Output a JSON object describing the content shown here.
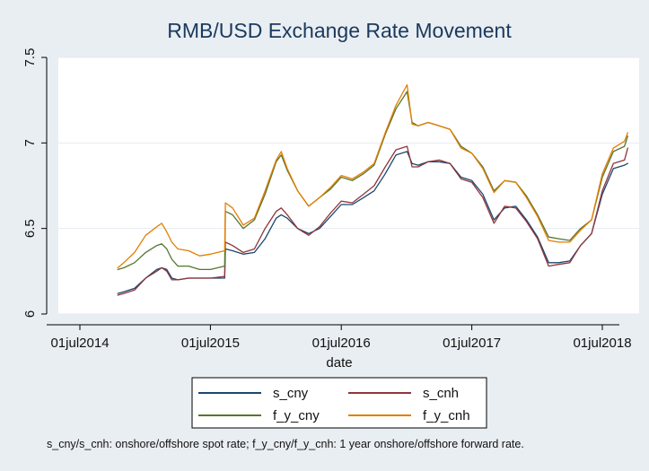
{
  "chart_data": {
    "type": "line",
    "title": "RMB/USD Exchange Rate Movement",
    "xlabel": "date",
    "ylabel": "",
    "ylim": [
      6,
      7.5
    ],
    "yticks": [
      6,
      6.5,
      7,
      7.5
    ],
    "ytick_labels": [
      "6",
      "6.5",
      "7",
      "7.5"
    ],
    "xticks": [
      "2014-07-01",
      "2015-07-01",
      "2016-07-01",
      "2017-07-01",
      "2018-07-01"
    ],
    "xtick_labels": [
      "01jul2014",
      "01jul2015",
      "01jul2016",
      "01jul2017",
      "01jul2018"
    ],
    "xlim": [
      "2014-07-01",
      "2018-09-15"
    ],
    "grid": true,
    "legend_position": "bottom",
    "note": "s_cny/s_cnh: onshore/offshore spot rate; f_y_cny/f_y_cnh: 1 year onshore/offshore forward rate.",
    "series": [
      {
        "name": "s_cny",
        "color": "#1a476f",
        "points": [
          [
            "2014-10-15",
            6.12
          ],
          [
            "2014-11-01",
            6.13
          ],
          [
            "2014-12-01",
            6.15
          ],
          [
            "2015-01-01",
            6.21
          ],
          [
            "2015-02-01",
            6.26
          ],
          [
            "2015-02-15",
            6.27
          ],
          [
            "2015-03-01",
            6.26
          ],
          [
            "2015-03-15",
            6.21
          ],
          [
            "2015-04-01",
            6.2
          ],
          [
            "2015-05-01",
            6.21
          ],
          [
            "2015-06-01",
            6.21
          ],
          [
            "2015-07-01",
            6.21
          ],
          [
            "2015-08-10",
            6.21
          ],
          [
            "2015-08-12",
            6.38
          ],
          [
            "2015-09-01",
            6.37
          ],
          [
            "2015-10-01",
            6.35
          ],
          [
            "2015-11-01",
            6.36
          ],
          [
            "2015-12-01",
            6.44
          ],
          [
            "2016-01-01",
            6.56
          ],
          [
            "2016-01-15",
            6.58
          ],
          [
            "2016-02-01",
            6.56
          ],
          [
            "2016-03-01",
            6.5
          ],
          [
            "2016-04-01",
            6.47
          ],
          [
            "2016-05-01",
            6.5
          ],
          [
            "2016-06-01",
            6.57
          ],
          [
            "2016-07-01",
            6.64
          ],
          [
            "2016-08-01",
            6.64
          ],
          [
            "2016-09-01",
            6.68
          ],
          [
            "2016-10-01",
            6.72
          ],
          [
            "2016-11-01",
            6.82
          ],
          [
            "2016-12-01",
            6.93
          ],
          [
            "2017-01-01",
            6.95
          ],
          [
            "2017-01-15",
            6.88
          ],
          [
            "2017-02-01",
            6.87
          ],
          [
            "2017-03-01",
            6.89
          ],
          [
            "2017-04-01",
            6.89
          ],
          [
            "2017-05-01",
            6.88
          ],
          [
            "2017-06-01",
            6.8
          ],
          [
            "2017-07-01",
            6.78
          ],
          [
            "2017-08-01",
            6.7
          ],
          [
            "2017-09-01",
            6.55
          ],
          [
            "2017-10-01",
            6.62
          ],
          [
            "2017-11-01",
            6.63
          ],
          [
            "2017-12-01",
            6.55
          ],
          [
            "2018-01-01",
            6.45
          ],
          [
            "2018-02-01",
            6.3
          ],
          [
            "2018-03-01",
            6.3
          ],
          [
            "2018-04-01",
            6.31
          ],
          [
            "2018-05-01",
            6.4
          ],
          [
            "2018-06-01",
            6.47
          ],
          [
            "2018-07-01",
            6.7
          ],
          [
            "2018-08-01",
            6.85
          ],
          [
            "2018-09-01",
            6.87
          ],
          [
            "2018-09-10",
            6.88
          ]
        ]
      },
      {
        "name": "s_cnh",
        "color": "#90353b",
        "points": [
          [
            "2014-10-15",
            6.11
          ],
          [
            "2014-11-01",
            6.12
          ],
          [
            "2014-12-01",
            6.14
          ],
          [
            "2015-01-01",
            6.21
          ],
          [
            "2015-02-01",
            6.25
          ],
          [
            "2015-02-15",
            6.27
          ],
          [
            "2015-03-01",
            6.25
          ],
          [
            "2015-03-15",
            6.2
          ],
          [
            "2015-04-01",
            6.2
          ],
          [
            "2015-05-01",
            6.21
          ],
          [
            "2015-06-01",
            6.21
          ],
          [
            "2015-07-01",
            6.21
          ],
          [
            "2015-08-10",
            6.22
          ],
          [
            "2015-08-12",
            6.42
          ],
          [
            "2015-09-01",
            6.4
          ],
          [
            "2015-10-01",
            6.36
          ],
          [
            "2015-11-01",
            6.38
          ],
          [
            "2015-12-01",
            6.5
          ],
          [
            "2016-01-01",
            6.6
          ],
          [
            "2016-01-15",
            6.62
          ],
          [
            "2016-02-01",
            6.58
          ],
          [
            "2016-03-01",
            6.5
          ],
          [
            "2016-04-01",
            6.46
          ],
          [
            "2016-05-01",
            6.51
          ],
          [
            "2016-06-01",
            6.59
          ],
          [
            "2016-07-01",
            6.66
          ],
          [
            "2016-08-01",
            6.65
          ],
          [
            "2016-09-01",
            6.7
          ],
          [
            "2016-10-01",
            6.75
          ],
          [
            "2016-11-01",
            6.86
          ],
          [
            "2016-12-01",
            6.96
          ],
          [
            "2017-01-01",
            6.98
          ],
          [
            "2017-01-15",
            6.86
          ],
          [
            "2017-02-01",
            6.86
          ],
          [
            "2017-03-01",
            6.89
          ],
          [
            "2017-04-01",
            6.9
          ],
          [
            "2017-05-01",
            6.88
          ],
          [
            "2017-06-01",
            6.79
          ],
          [
            "2017-07-01",
            6.77
          ],
          [
            "2017-08-01",
            6.68
          ],
          [
            "2017-09-01",
            6.53
          ],
          [
            "2017-10-01",
            6.63
          ],
          [
            "2017-11-01",
            6.62
          ],
          [
            "2017-12-01",
            6.54
          ],
          [
            "2018-01-01",
            6.44
          ],
          [
            "2018-02-01",
            6.28
          ],
          [
            "2018-03-01",
            6.29
          ],
          [
            "2018-04-01",
            6.3
          ],
          [
            "2018-05-01",
            6.4
          ],
          [
            "2018-06-01",
            6.47
          ],
          [
            "2018-07-01",
            6.72
          ],
          [
            "2018-08-01",
            6.88
          ],
          [
            "2018-09-01",
            6.9
          ],
          [
            "2018-09-10",
            6.97
          ]
        ]
      },
      {
        "name": "f_y_cny",
        "color": "#55752f",
        "points": [
          [
            "2014-10-15",
            6.26
          ],
          [
            "2014-11-01",
            6.27
          ],
          [
            "2014-12-01",
            6.3
          ],
          [
            "2015-01-01",
            6.36
          ],
          [
            "2015-02-01",
            6.4
          ],
          [
            "2015-02-15",
            6.41
          ],
          [
            "2015-03-01",
            6.38
          ],
          [
            "2015-03-15",
            6.32
          ],
          [
            "2015-04-01",
            6.28
          ],
          [
            "2015-05-01",
            6.28
          ],
          [
            "2015-06-01",
            6.26
          ],
          [
            "2015-07-01",
            6.26
          ],
          [
            "2015-08-10",
            6.28
          ],
          [
            "2015-08-12",
            6.6
          ],
          [
            "2015-09-01",
            6.58
          ],
          [
            "2015-10-01",
            6.5
          ],
          [
            "2015-11-01",
            6.55
          ],
          [
            "2015-12-01",
            6.7
          ],
          [
            "2016-01-01",
            6.89
          ],
          [
            "2016-01-15",
            6.93
          ],
          [
            "2016-02-01",
            6.84
          ],
          [
            "2016-03-01",
            6.72
          ],
          [
            "2016-04-01",
            6.63
          ],
          [
            "2016-05-01",
            6.68
          ],
          [
            "2016-06-01",
            6.73
          ],
          [
            "2016-07-01",
            6.8
          ],
          [
            "2016-08-01",
            6.78
          ],
          [
            "2016-09-01",
            6.82
          ],
          [
            "2016-10-01",
            6.87
          ],
          [
            "2016-11-01",
            7.05
          ],
          [
            "2016-12-01",
            7.2
          ],
          [
            "2017-01-01",
            7.3
          ],
          [
            "2017-01-15",
            7.12
          ],
          [
            "2017-02-01",
            7.1
          ],
          [
            "2017-03-01",
            7.12
          ],
          [
            "2017-04-01",
            7.1
          ],
          [
            "2017-05-01",
            7.08
          ],
          [
            "2017-06-01",
            6.98
          ],
          [
            "2017-07-01",
            6.94
          ],
          [
            "2017-08-01",
            6.86
          ],
          [
            "2017-09-01",
            6.72
          ],
          [
            "2017-10-01",
            6.78
          ],
          [
            "2017-11-01",
            6.77
          ],
          [
            "2017-12-01",
            6.69
          ],
          [
            "2018-01-01",
            6.58
          ],
          [
            "2018-02-01",
            6.45
          ],
          [
            "2018-03-01",
            6.44
          ],
          [
            "2018-04-01",
            6.43
          ],
          [
            "2018-05-01",
            6.5
          ],
          [
            "2018-06-01",
            6.55
          ],
          [
            "2018-07-01",
            6.8
          ],
          [
            "2018-08-01",
            6.95
          ],
          [
            "2018-09-01",
            6.98
          ],
          [
            "2018-09-10",
            7.04
          ]
        ]
      },
      {
        "name": "f_y_cnh",
        "color": "#e37e00",
        "points": [
          [
            "2014-10-15",
            6.27
          ],
          [
            "2014-11-01",
            6.3
          ],
          [
            "2014-12-01",
            6.36
          ],
          [
            "2015-01-01",
            6.46
          ],
          [
            "2015-02-01",
            6.51
          ],
          [
            "2015-02-15",
            6.53
          ],
          [
            "2015-03-01",
            6.48
          ],
          [
            "2015-03-15",
            6.42
          ],
          [
            "2015-04-01",
            6.38
          ],
          [
            "2015-05-01",
            6.37
          ],
          [
            "2015-06-01",
            6.34
          ],
          [
            "2015-07-01",
            6.35
          ],
          [
            "2015-08-10",
            6.37
          ],
          [
            "2015-08-12",
            6.65
          ],
          [
            "2015-09-01",
            6.62
          ],
          [
            "2015-10-01",
            6.52
          ],
          [
            "2015-11-01",
            6.56
          ],
          [
            "2015-12-01",
            6.72
          ],
          [
            "2016-01-01",
            6.9
          ],
          [
            "2016-01-15",
            6.95
          ],
          [
            "2016-02-01",
            6.85
          ],
          [
            "2016-03-01",
            6.72
          ],
          [
            "2016-04-01",
            6.63
          ],
          [
            "2016-05-01",
            6.68
          ],
          [
            "2016-06-01",
            6.74
          ],
          [
            "2016-07-01",
            6.81
          ],
          [
            "2016-08-01",
            6.79
          ],
          [
            "2016-09-01",
            6.83
          ],
          [
            "2016-10-01",
            6.88
          ],
          [
            "2016-11-01",
            7.06
          ],
          [
            "2016-12-01",
            7.22
          ],
          [
            "2017-01-01",
            7.34
          ],
          [
            "2017-01-15",
            7.11
          ],
          [
            "2017-02-01",
            7.1
          ],
          [
            "2017-03-01",
            7.12
          ],
          [
            "2017-04-01",
            7.1
          ],
          [
            "2017-05-01",
            7.08
          ],
          [
            "2017-06-01",
            6.97
          ],
          [
            "2017-07-01",
            6.94
          ],
          [
            "2017-08-01",
            6.85
          ],
          [
            "2017-09-01",
            6.71
          ],
          [
            "2017-10-01",
            6.78
          ],
          [
            "2017-11-01",
            6.77
          ],
          [
            "2017-12-01",
            6.68
          ],
          [
            "2018-01-01",
            6.57
          ],
          [
            "2018-02-01",
            6.43
          ],
          [
            "2018-03-01",
            6.42
          ],
          [
            "2018-04-01",
            6.42
          ],
          [
            "2018-05-01",
            6.49
          ],
          [
            "2018-06-01",
            6.55
          ],
          [
            "2018-07-01",
            6.82
          ],
          [
            "2018-08-01",
            6.97
          ],
          [
            "2018-09-01",
            7.01
          ],
          [
            "2018-09-10",
            7.06
          ]
        ]
      }
    ]
  }
}
